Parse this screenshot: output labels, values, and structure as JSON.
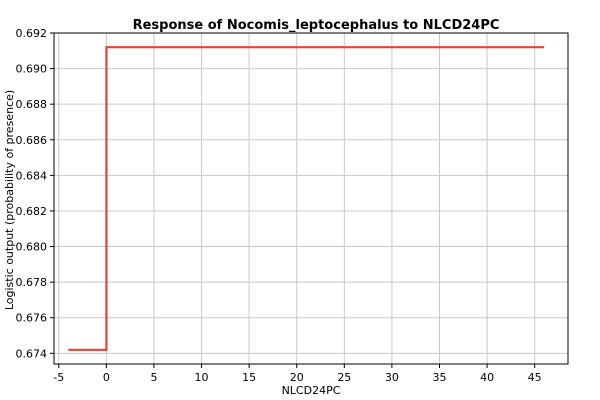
{
  "chart_data": {
    "type": "line",
    "title": "Response of Nocomis_leptocephalus to NLCD24PC",
    "xlabel": "NLCD24PC",
    "ylabel": "Logistic output (probability of presence)",
    "xlim": [
      -5.5,
      48.5
    ],
    "ylim": [
      0.6734,
      0.692
    ],
    "x_ticks": [
      -5,
      0,
      5,
      10,
      15,
      20,
      25,
      30,
      35,
      40,
      45
    ],
    "x_tick_labels": [
      "-5",
      "0",
      "5",
      "10",
      "15",
      "20",
      "25",
      "30",
      "35",
      "40",
      "45"
    ],
    "y_ticks": [
      0.674,
      0.676,
      0.678,
      0.68,
      0.682,
      0.684,
      0.686,
      0.688,
      0.69,
      0.692
    ],
    "y_tick_labels": [
      "0.674",
      "0.676",
      "0.678",
      "0.680",
      "0.682",
      "0.684",
      "0.686",
      "0.688",
      "0.690",
      "0.692"
    ],
    "grid": true,
    "series": [
      {
        "color": "#e8403a",
        "x": [
          -4,
          0,
          0,
          46
        ],
        "y": [
          0.6742,
          0.6742,
          0.6912,
          0.6912
        ]
      }
    ]
  }
}
